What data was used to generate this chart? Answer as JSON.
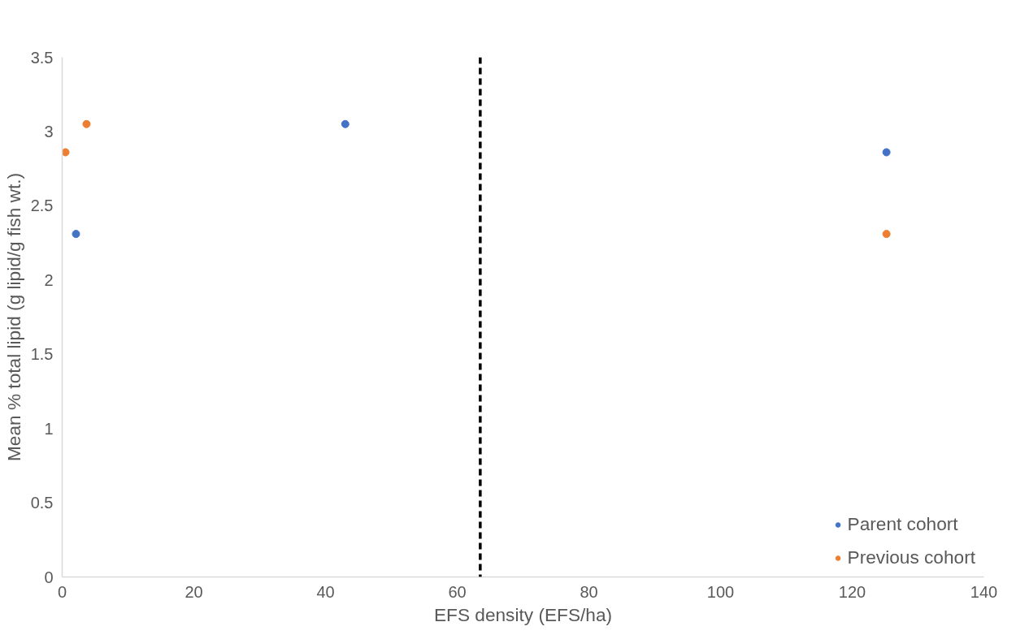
{
  "chart_data": {
    "type": "scatter",
    "xlabel": "EFS density (EFS/ha)",
    "ylabel": "Mean % total lipid (g lipid/g fish wt.)",
    "series": [
      {
        "name": "Parent cohort",
        "color": "#4472c4",
        "x": [
          2.1,
          43,
          125.2
        ],
        "values": [
          2.31,
          3.05,
          2.86
        ]
      },
      {
        "name": "Previous cohort",
        "color": "#ed7d31",
        "x": [
          0.5,
          3.7,
          125.2
        ],
        "values": [
          2.86,
          3.05,
          2.31
        ]
      }
    ],
    "xlim": [
      0,
      140
    ],
    "xticks": [
      0,
      20,
      40,
      60,
      80,
      100,
      120,
      140
    ],
    "ylim": [
      0,
      3.5
    ],
    "yticks": [
      0,
      0.5,
      1,
      1.5,
      2,
      2.5,
      3,
      3.5
    ],
    "ref_lines": [
      {
        "axis": "x",
        "value": 63.5,
        "color": "#000000",
        "line_style": "dashed"
      }
    ],
    "grid": false,
    "legend": "bottom right",
    "marker": "circle"
  }
}
